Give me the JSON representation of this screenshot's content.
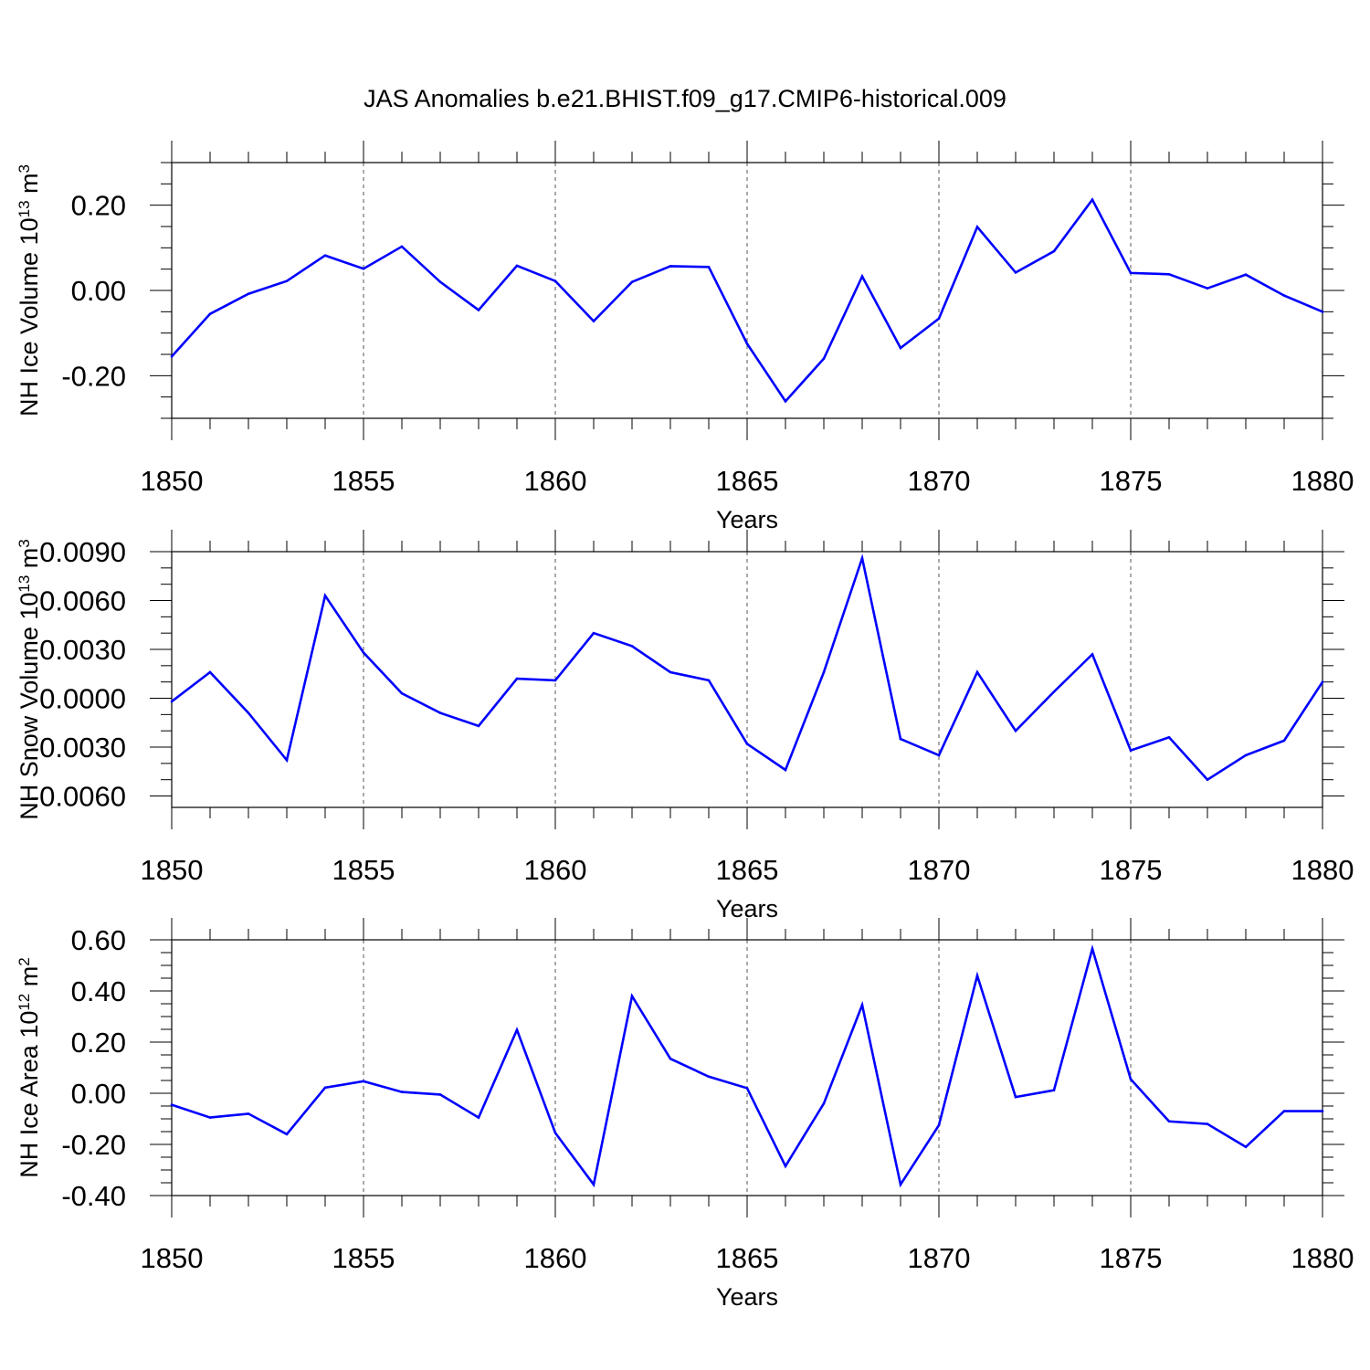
{
  "title": "JAS Anomalies b.e21.BHIST.f09_g17.CMIP6-historical.009",
  "colors": {
    "line": "#0000ff",
    "axes": "#000000",
    "grid": "#555555"
  },
  "chart_data": [
    {
      "type": "line",
      "xlabel": "Years",
      "ylabel": {
        "text": "NH Ice Volume 10",
        "exp": "13",
        "unit": " m",
        "unit_exp": "3"
      },
      "xlim": [
        1850,
        1880
      ],
      "ylim": [
        -0.3,
        0.3
      ],
      "xticks": [
        "1850",
        "1855",
        "1860",
        "1865",
        "1870",
        "1875",
        "1880"
      ],
      "yticks": [
        {
          "value": 0.2,
          "label": "0.20"
        },
        {
          "value": 0.0,
          "label": "0.00"
        },
        {
          "value": -0.2,
          "label": "-0.20"
        }
      ],
      "y_minor_step": 0.05,
      "grid": "vertical dashed at major x ticks",
      "series": [
        {
          "name": "NH Ice Volume",
          "x": [
            1850,
            1851,
            1852,
            1853,
            1854,
            1855,
            1856,
            1857,
            1858,
            1859,
            1860,
            1861,
            1862,
            1863,
            1864,
            1865,
            1866,
            1867,
            1868,
            1869,
            1870,
            1871,
            1872,
            1873,
            1874,
            1875,
            1876,
            1877,
            1878,
            1879,
            1880
          ],
          "values": [
            -0.155,
            -0.055,
            -0.008,
            0.022,
            0.082,
            0.051,
            0.103,
            0.02,
            -0.046,
            0.058,
            0.022,
            -0.072,
            0.02,
            0.057,
            0.055,
            -0.125,
            -0.26,
            -0.16,
            0.033,
            -0.135,
            -0.066,
            0.149,
            0.042,
            0.092,
            0.213,
            0.041,
            0.038,
            0.005,
            0.037,
            -0.012,
            -0.05
          ]
        }
      ]
    },
    {
      "type": "line",
      "xlabel": "Years",
      "ylabel": {
        "text": "NH Snow Volume 10",
        "exp": "13",
        "unit": " m",
        "unit_exp": "3"
      },
      "xlim": [
        1850,
        1880
      ],
      "ylim": [
        -0.0067,
        0.009
      ],
      "xticks": [
        "1850",
        "1855",
        "1860",
        "1865",
        "1870",
        "1875",
        "1880"
      ],
      "yticks": [
        {
          "value": 0.009,
          "label": "0.0090"
        },
        {
          "value": 0.006,
          "label": "0.0060"
        },
        {
          "value": 0.003,
          "label": "0.0030"
        },
        {
          "value": 0.0,
          "label": "0.0000"
        },
        {
          "value": -0.003,
          "label": "-0.0030"
        },
        {
          "value": -0.006,
          "label": "-0.0060"
        }
      ],
      "y_minor_step": 0.001,
      "grid": "vertical dashed at major x ticks",
      "series": [
        {
          "name": "NH Snow Volume",
          "x": [
            1850,
            1851,
            1852,
            1853,
            1854,
            1855,
            1856,
            1857,
            1858,
            1859,
            1860,
            1861,
            1862,
            1863,
            1864,
            1865,
            1866,
            1867,
            1868,
            1869,
            1870,
            1871,
            1872,
            1873,
            1874,
            1875,
            1876,
            1877,
            1878,
            1879,
            1880
          ],
          "values": [
            -0.0002,
            0.0016,
            -0.0009,
            -0.0038,
            0.0063,
            0.0028,
            0.0003,
            -0.0009,
            -0.0017,
            0.0012,
            0.0011,
            0.004,
            0.0032,
            0.0016,
            0.0011,
            -0.0028,
            -0.0044,
            0.0016,
            0.0086,
            -0.0025,
            -0.0035,
            0.0016,
            -0.002,
            0.0004,
            0.0027,
            -0.0032,
            -0.0024,
            -0.005,
            -0.0035,
            -0.0026,
            0.001
          ]
        }
      ]
    },
    {
      "type": "line",
      "xlabel": "Years",
      "ylabel": {
        "text": "NH Ice Area 10",
        "exp": "12",
        "unit": " m",
        "unit_exp": "2"
      },
      "xlim": [
        1850,
        1880
      ],
      "ylim": [
        -0.4,
        0.6
      ],
      "xticks": [
        "1850",
        "1855",
        "1860",
        "1865",
        "1870",
        "1875",
        "1880"
      ],
      "yticks": [
        {
          "value": 0.6,
          "label": "0.60"
        },
        {
          "value": 0.4,
          "label": "0.40"
        },
        {
          "value": 0.2,
          "label": "0.20"
        },
        {
          "value": 0.0,
          "label": "0.00"
        },
        {
          "value": -0.2,
          "label": "-0.20"
        },
        {
          "value": -0.4,
          "label": "-0.40"
        }
      ],
      "y_minor_step": 0.05,
      "grid": "vertical dashed at major x ticks",
      "series": [
        {
          "name": "NH Ice Area",
          "x": [
            1850,
            1851,
            1852,
            1853,
            1854,
            1855,
            1856,
            1857,
            1858,
            1859,
            1860,
            1861,
            1862,
            1863,
            1864,
            1865,
            1866,
            1867,
            1868,
            1869,
            1870,
            1871,
            1872,
            1873,
            1874,
            1875,
            1876,
            1877,
            1878,
            1879,
            1880
          ],
          "values": [
            -0.045,
            -0.095,
            -0.08,
            -0.16,
            0.022,
            0.047,
            0.005,
            -0.005,
            -0.095,
            0.248,
            -0.155,
            -0.357,
            0.38,
            0.135,
            0.065,
            0.02,
            -0.285,
            -0.04,
            0.345,
            -0.357,
            -0.125,
            0.46,
            -0.015,
            0.012,
            0.565,
            0.055,
            -0.11,
            -0.12,
            -0.21,
            -0.07,
            -0.07
          ]
        }
      ]
    }
  ]
}
